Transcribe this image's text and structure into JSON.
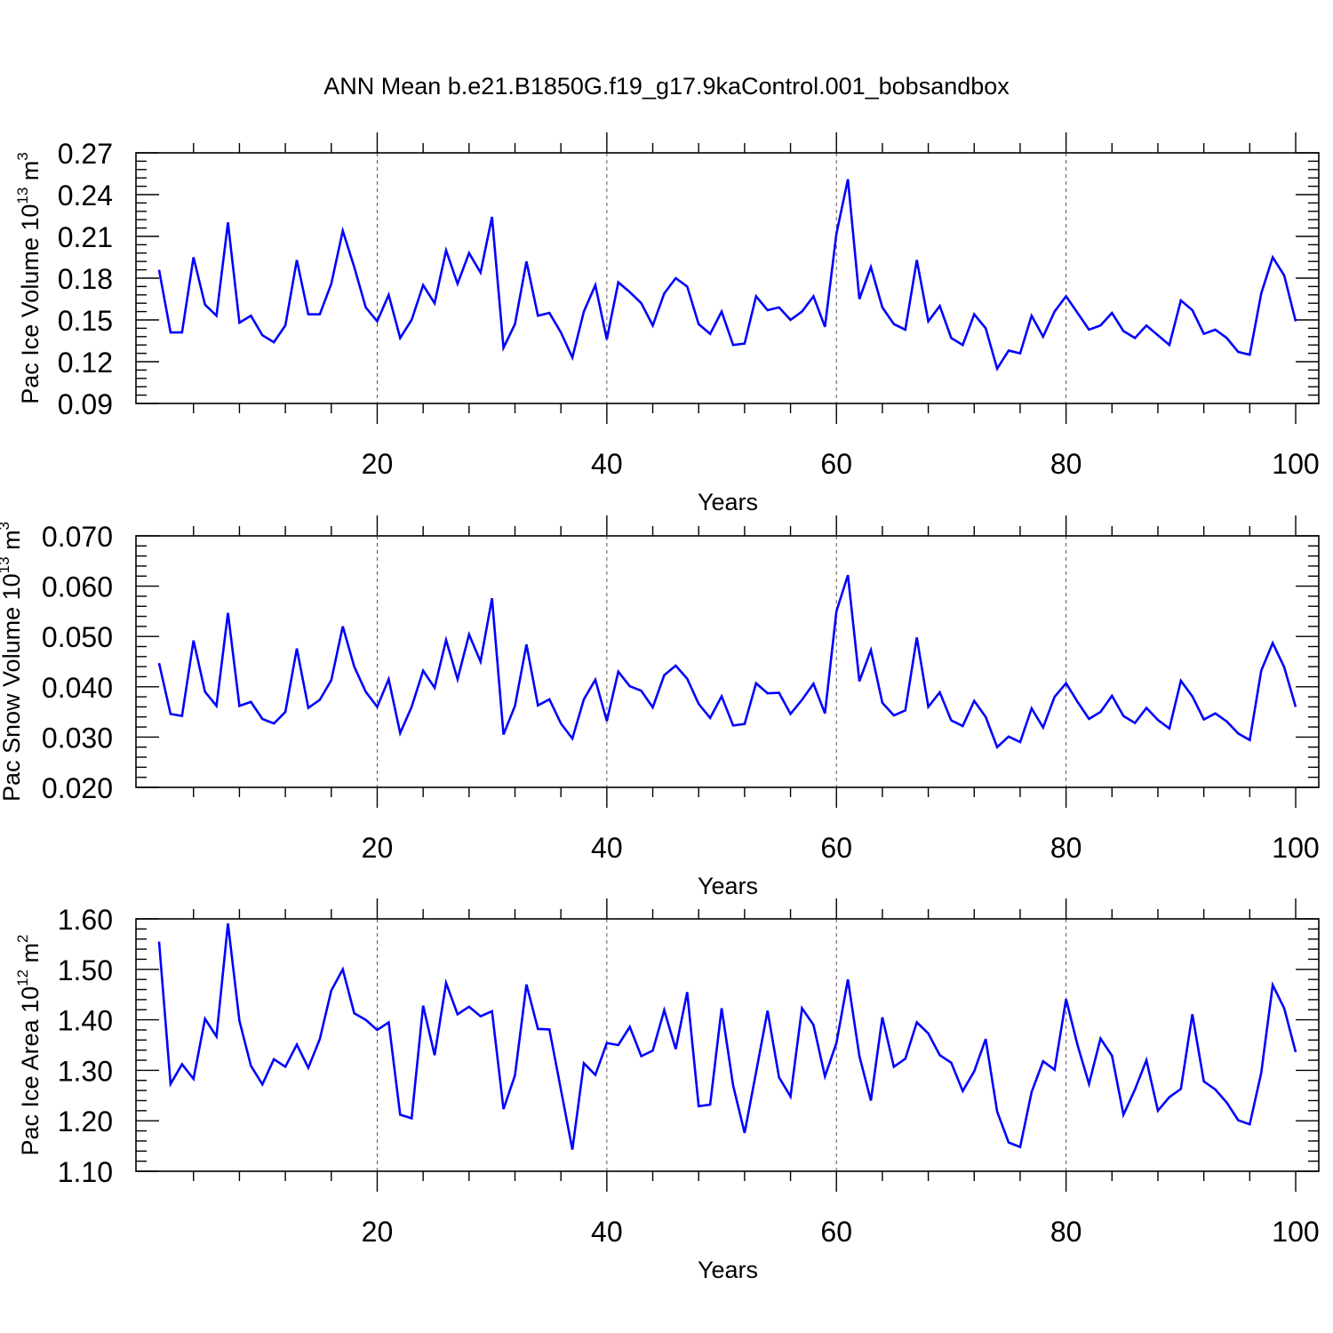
{
  "title": "ANN Mean b.e21.B1850G.f19_g17.9kaControl.001_bobsandbox",
  "chart_data": [
    {
      "type": "line",
      "ylabel": "Pac Ice Volume 10",
      "ylabel_exp": "13",
      "ylabel_unit": "m",
      "ylabel_unit_exp": "3",
      "xlabel": "Years",
      "xlim": [
        1,
        100
      ],
      "ylim": [
        0.09,
        0.27
      ],
      "xticks": [
        20,
        40,
        60,
        80,
        100
      ],
      "xtick_labels": [
        "20",
        "40",
        "60",
        "80",
        "100"
      ],
      "yticks": [
        0.09,
        0.12,
        0.15,
        0.18,
        0.21,
        0.24,
        0.27
      ],
      "ytick_labels": [
        "0.09",
        "0.12",
        "0.15",
        "0.18",
        "0.21",
        "0.24",
        "0.27"
      ],
      "grid_x": [
        20,
        40,
        60,
        80
      ],
      "color": "#0000ff",
      "values": [
        0.186,
        0.141,
        0.141,
        0.195,
        0.161,
        0.153,
        0.22,
        0.148,
        0.153,
        0.139,
        0.134,
        0.146,
        0.193,
        0.154,
        0.154,
        0.176,
        0.214,
        0.188,
        0.159,
        0.149,
        0.168,
        0.137,
        0.15,
        0.175,
        0.162,
        0.2,
        0.176,
        0.198,
        0.184,
        0.224,
        0.13,
        0.147,
        0.192,
        0.153,
        0.155,
        0.141,
        0.123,
        0.156,
        0.175,
        0.136,
        0.177,
        0.17,
        0.162,
        0.146,
        0.169,
        0.18,
        0.174,
        0.147,
        0.14,
        0.156,
        0.132,
        0.133,
        0.167,
        0.157,
        0.159,
        0.15,
        0.156,
        0.167,
        0.145,
        0.212,
        0.251,
        0.165,
        0.188,
        0.159,
        0.147,
        0.143,
        0.193,
        0.149,
        0.16,
        0.137,
        0.132,
        0.154,
        0.144,
        0.115,
        0.128,
        0.126,
        0.153,
        0.138,
        0.156,
        0.167,
        0.155,
        0.143,
        0.146,
        0.155,
        0.142,
        0.137,
        0.146,
        0.139,
        0.132,
        0.164,
        0.157,
        0.14,
        0.143,
        0.137,
        0.127,
        0.125,
        0.169,
        0.195,
        0.182,
        0.149
      ]
    },
    {
      "type": "line",
      "ylabel": "Pac Snow Volume 10",
      "ylabel_exp": "13",
      "ylabel_unit": "m",
      "ylabel_unit_exp": "3",
      "xlabel": "Years",
      "xlim": [
        1,
        100
      ],
      "ylim": [
        0.02,
        0.07
      ],
      "xticks": [
        20,
        40,
        60,
        80,
        100
      ],
      "xtick_labels": [
        "20",
        "40",
        "60",
        "80",
        "100"
      ],
      "yticks": [
        0.02,
        0.03,
        0.04,
        0.05,
        0.06,
        0.07
      ],
      "ytick_labels": [
        "0.020",
        "0.030",
        "0.040",
        "0.050",
        "0.060",
        "0.070"
      ],
      "grid_x": [
        20,
        40,
        60,
        80
      ],
      "color": "#0000ff",
      "values": [
        0.0447,
        0.0346,
        0.0342,
        0.0492,
        0.039,
        0.0362,
        0.0547,
        0.0362,
        0.037,
        0.0336,
        0.0327,
        0.035,
        0.0476,
        0.0358,
        0.0374,
        0.0413,
        0.052,
        0.044,
        0.039,
        0.036,
        0.0415,
        0.0308,
        0.036,
        0.0432,
        0.0398,
        0.0493,
        0.0415,
        0.0504,
        0.045,
        0.0576,
        0.0305,
        0.0362,
        0.0484,
        0.0363,
        0.0375,
        0.0327,
        0.0297,
        0.0375,
        0.0414,
        0.0332,
        0.043,
        0.0401,
        0.0392,
        0.0359,
        0.0423,
        0.0442,
        0.0416,
        0.0366,
        0.0338,
        0.0381,
        0.0323,
        0.0326,
        0.0407,
        0.0387,
        0.0388,
        0.0346,
        0.0374,
        0.0406,
        0.0347,
        0.055,
        0.0622,
        0.0411,
        0.0473,
        0.0368,
        0.0343,
        0.0353,
        0.0498,
        0.036,
        0.0389,
        0.0333,
        0.0322,
        0.0372,
        0.034,
        0.028,
        0.0301,
        0.029,
        0.0357,
        0.0319,
        0.038,
        0.0407,
        0.037,
        0.0336,
        0.035,
        0.0382,
        0.0342,
        0.0328,
        0.0358,
        0.0334,
        0.0317,
        0.0412,
        0.0381,
        0.0335,
        0.0347,
        0.0331,
        0.0307,
        0.0294,
        0.0432,
        0.0487,
        0.0439,
        0.036
      ]
    },
    {
      "type": "line",
      "ylabel": "Pac Ice Area 10",
      "ylabel_exp": "12",
      "ylabel_unit": "m",
      "ylabel_unit_exp": "2",
      "xlabel": "Years",
      "xlim": [
        1,
        100
      ],
      "ylim": [
        1.1,
        1.6
      ],
      "xticks": [
        20,
        40,
        60,
        80,
        100
      ],
      "xtick_labels": [
        "20",
        "40",
        "60",
        "80",
        "100"
      ],
      "yticks": [
        1.1,
        1.2,
        1.3,
        1.4,
        1.5,
        1.6
      ],
      "ytick_labels": [
        "1.10",
        "1.20",
        "1.30",
        "1.40",
        "1.50",
        "1.60"
      ],
      "grid_x": [
        20,
        40,
        60,
        80
      ],
      "color": "#0000ff",
      "values": [
        1.555,
        1.273,
        1.312,
        1.283,
        1.402,
        1.367,
        1.591,
        1.398,
        1.309,
        1.272,
        1.322,
        1.307,
        1.351,
        1.305,
        1.362,
        1.458,
        1.5,
        1.413,
        1.4,
        1.38,
        1.395,
        1.212,
        1.205,
        1.428,
        1.33,
        1.473,
        1.411,
        1.426,
        1.407,
        1.417,
        1.223,
        1.29,
        1.47,
        1.382,
        1.381,
        1.262,
        1.143,
        1.314,
        1.291,
        1.354,
        1.35,
        1.386,
        1.328,
        1.339,
        1.419,
        1.342,
        1.455,
        1.229,
        1.232,
        1.423,
        1.27,
        1.176,
        1.296,
        1.418,
        1.286,
        1.248,
        1.423,
        1.39,
        1.288,
        1.354,
        1.48,
        1.328,
        1.24,
        1.405,
        1.307,
        1.323,
        1.395,
        1.373,
        1.33,
        1.315,
        1.259,
        1.298,
        1.362,
        1.218,
        1.157,
        1.148,
        1.257,
        1.318,
        1.301,
        1.441,
        1.35,
        1.273,
        1.363,
        1.329,
        1.212,
        1.262,
        1.32,
        1.22,
        1.247,
        1.263,
        1.411,
        1.278,
        1.262,
        1.236,
        1.201,
        1.193,
        1.295,
        1.469,
        1.423,
        1.336
      ]
    }
  ]
}
